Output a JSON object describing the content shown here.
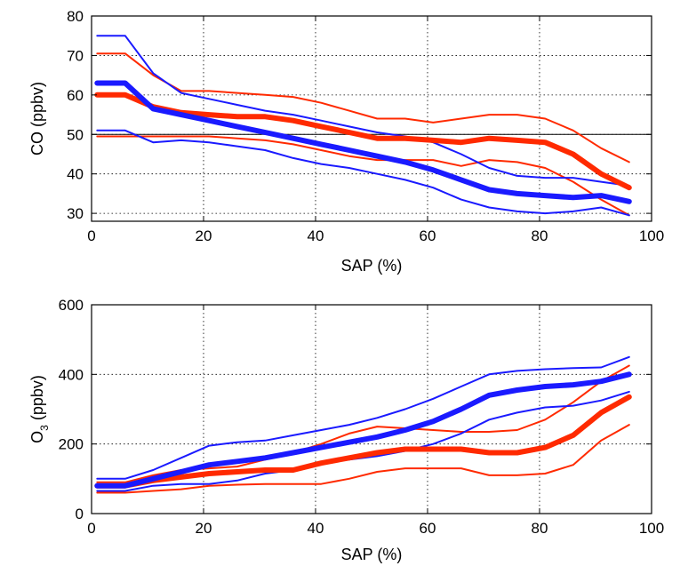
{
  "chart_data": [
    {
      "type": "line",
      "xlabel": "SAP (%)",
      "ylabel": "CO (ppbv)",
      "xlim": [
        0,
        100
      ],
      "ylim": [
        28,
        80
      ],
      "xticks": [
        0,
        20,
        40,
        60,
        80,
        100
      ],
      "yticks": [
        30,
        40,
        50,
        60,
        70,
        80
      ],
      "grid": true,
      "reference_line_y": 50,
      "x": [
        1,
        6,
        11,
        16,
        21,
        26,
        31,
        36,
        41,
        46,
        51,
        56,
        61,
        66,
        71,
        76,
        81,
        86,
        91,
        96
      ],
      "series": [
        {
          "color": "#ff2a00",
          "weight": "thin",
          "values": [
            70.5,
            70.5,
            65,
            61,
            61,
            60.5,
            60,
            59.5,
            58,
            56,
            54,
            54,
            53,
            54,
            55,
            55,
            54,
            51,
            46.5,
            43
          ]
        },
        {
          "color": "#ff2a00",
          "weight": "thick",
          "values": [
            60,
            60,
            57,
            55.5,
            55,
            54.5,
            54.5,
            53.5,
            52,
            50.5,
            49,
            49,
            48.5,
            48,
            49,
            48.5,
            48,
            45,
            40,
            36.5
          ]
        },
        {
          "color": "#ff2a00",
          "weight": "thin",
          "values": [
            49.5,
            49.5,
            49.5,
            49.5,
            49.5,
            49,
            48.5,
            47.5,
            46,
            44.5,
            43.5,
            43.5,
            43.5,
            42,
            43.5,
            43,
            41.5,
            38,
            33.5,
            29.5
          ]
        },
        {
          "color": "#1a1aff",
          "weight": "thin",
          "values": [
            75,
            75,
            65.5,
            60.5,
            59,
            57.5,
            56,
            55,
            53.5,
            52,
            50.5,
            49.5,
            48,
            45,
            41.5,
            39.5,
            39,
            39,
            38,
            37
          ]
        },
        {
          "color": "#1a1aff",
          "weight": "thick",
          "values": [
            63,
            63,
            56.5,
            55,
            53.5,
            52,
            50.5,
            49,
            47.5,
            46,
            44.5,
            43,
            41,
            38.5,
            36,
            35,
            34.5,
            34,
            34.5,
            33
          ]
        },
        {
          "color": "#1a1aff",
          "weight": "thin",
          "values": [
            51,
            51,
            48,
            48.5,
            48,
            47,
            46,
            44,
            42.5,
            41.5,
            40,
            38.5,
            36.5,
            33.5,
            31.5,
            30.5,
            30,
            30.5,
            31.5,
            29.5
          ]
        }
      ]
    },
    {
      "type": "line",
      "xlabel": "SAP (%)",
      "ylabel": "O",
      "ylabel_sub": "3",
      "ylabel_tail": " (ppbv)",
      "xlim": [
        0,
        100
      ],
      "ylim": [
        0,
        600
      ],
      "xticks": [
        0,
        20,
        40,
        60,
        80,
        100
      ],
      "yticks": [
        0,
        200,
        400,
        600
      ],
      "grid": true,
      "x": [
        1,
        6,
        11,
        16,
        21,
        26,
        31,
        36,
        41,
        46,
        51,
        56,
        61,
        66,
        71,
        76,
        81,
        86,
        91,
        96
      ],
      "series": [
        {
          "color": "#ff2a00",
          "weight": "thin",
          "values": [
            60,
            60,
            65,
            70,
            80,
            83,
            85,
            85,
            85,
            100,
            120,
            130,
            130,
            130,
            110,
            110,
            115,
            140,
            210,
            255
          ]
        },
        {
          "color": "#ff2a00",
          "weight": "thick",
          "values": [
            80,
            80,
            95,
            105,
            115,
            120,
            125,
            125,
            145,
            160,
            175,
            185,
            185,
            185,
            175,
            175,
            190,
            225,
            290,
            335
          ]
        },
        {
          "color": "#ff2a00",
          "weight": "thin",
          "values": [
            90,
            90,
            110,
            125,
            130,
            135,
            155,
            175,
            200,
            230,
            250,
            245,
            240,
            235,
            235,
            240,
            270,
            320,
            380,
            425
          ]
        },
        {
          "color": "#1a1aff",
          "weight": "thin",
          "values": [
            100,
            100,
            125,
            160,
            195,
            205,
            210,
            225,
            240,
            255,
            275,
            300,
            330,
            365,
            400,
            410,
            415,
            418,
            420,
            450
          ]
        },
        {
          "color": "#1a1aff",
          "weight": "thick",
          "values": [
            80,
            80,
            100,
            120,
            140,
            150,
            160,
            175,
            190,
            205,
            220,
            240,
            265,
            300,
            340,
            355,
            365,
            370,
            380,
            400
          ]
        },
        {
          "color": "#1a1aff",
          "weight": "thin",
          "values": [
            65,
            65,
            80,
            85,
            85,
            95,
            115,
            125,
            145,
            155,
            165,
            180,
            200,
            230,
            270,
            290,
            305,
            310,
            325,
            350
          ]
        }
      ]
    }
  ]
}
